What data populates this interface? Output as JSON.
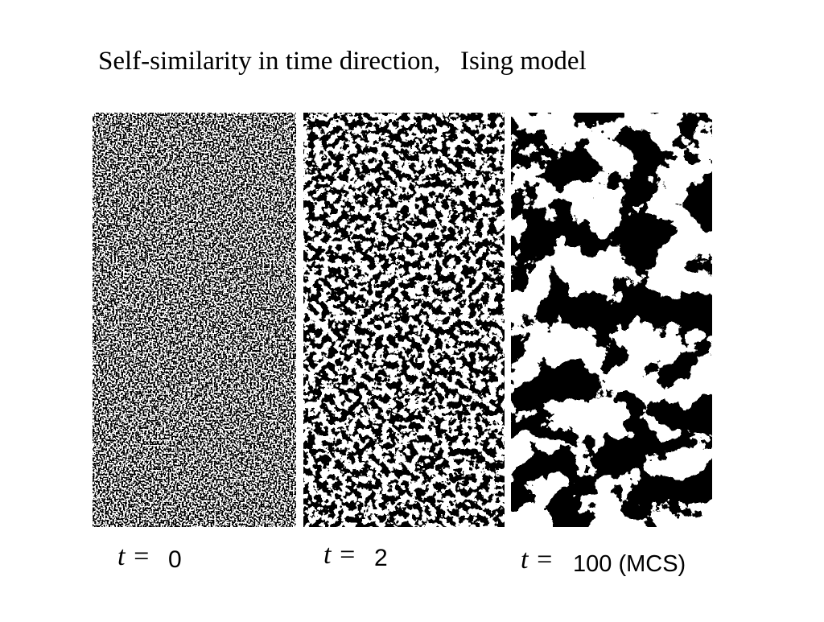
{
  "title": "Self-similarity in time direction,   Ising model",
  "panels": [
    {
      "variable": "t =",
      "value": "0"
    },
    {
      "variable": "t =",
      "value": "2"
    },
    {
      "variable": "t =",
      "value": "100 (MCS)"
    }
  ]
}
